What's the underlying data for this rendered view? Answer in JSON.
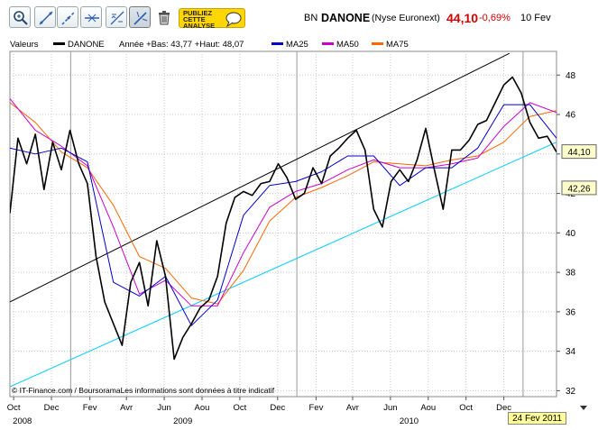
{
  "toolbar": {
    "buttons": [
      "zoom-icon",
      "line-tool-icon",
      "trend-tool-icon",
      "hline-tool-icon",
      "fibonacci-icon",
      "pencil-tool-icon",
      "trash-icon"
    ],
    "ad_lines": [
      "PUBLIEZ",
      "CETTE",
      "ANALYSE"
    ]
  },
  "quote": {
    "code": "BN",
    "name": "DANONE",
    "market": "(Nyse Euronext)",
    "price": "44,10",
    "change": "-0,69%",
    "date": "10 Fev"
  },
  "legend": {
    "title": "Valeurs",
    "series_name": "DANONE",
    "stats": "Année +Bas: 43,77 +Haut: 48,07",
    "ma25": "MA25",
    "ma50": "MA50",
    "ma75": "MA75"
  },
  "colors": {
    "price": "#000000",
    "ma25": "#0000cc",
    "ma50": "#cc00cc",
    "ma75": "#ff6600",
    "support": "#00ccff",
    "resistance": "#000000",
    "quote": "#d40000"
  },
  "copyright": "© IT-Finance.com / BoursoramaLes informations sont données à titre indicatif",
  "last_date_label": "24 Fev 2011",
  "chart_data": {
    "type": "line",
    "title": "DANONE",
    "ylim": [
      31.7,
      49.2
    ],
    "y_ticks": [
      32,
      34,
      36,
      38,
      40,
      42,
      44,
      46,
      48
    ],
    "y_tick_labels": [
      "32",
      "34",
      "36",
      "38",
      "40",
      "42",
      "44",
      "46",
      "48"
    ],
    "x_tick_labels": [
      "Oct",
      "Dec",
      "Fev",
      "Avr",
      "Jun",
      "Aou",
      "Oct",
      "Dec",
      "Fev",
      "Avr",
      "Jun",
      "Aou",
      "Oct",
      "Dec"
    ],
    "x_year_labels": [
      "2008",
      "2009",
      "2010"
    ],
    "x_range": [
      "2008-09-25",
      "2011-02-24"
    ],
    "grid": true,
    "price_labels": [
      {
        "value": 44.1,
        "text": "44,10"
      },
      {
        "value": 42.26,
        "text": "42,26"
      }
    ],
    "trendlines": [
      {
        "name": "resistance",
        "from": [
          "2008-09-25",
          36.5
        ],
        "to": [
          "2010-12-10",
          49.1
        ]
      },
      {
        "name": "support",
        "from": [
          "2008-09-25",
          32.2
        ],
        "to": [
          "2011-02-24",
          44.6
        ]
      }
    ],
    "series": [
      {
        "name": "DANONE",
        "x": [
          "2008-09-25",
          "2008-10-08",
          "2008-10-22",
          "2008-11-05",
          "2008-11-19",
          "2008-12-03",
          "2008-12-17",
          "2008-12-31",
          "2009-01-14",
          "2009-01-28",
          "2009-02-11",
          "2009-02-25",
          "2009-03-11",
          "2009-03-25",
          "2009-04-08",
          "2009-04-22",
          "2009-05-06",
          "2009-05-20",
          "2009-06-03",
          "2009-06-17",
          "2009-07-01",
          "2009-07-15",
          "2009-07-29",
          "2009-08-12",
          "2009-08-26",
          "2009-09-09",
          "2009-09-23",
          "2009-10-07",
          "2009-10-21",
          "2009-11-04",
          "2009-11-18",
          "2009-12-02",
          "2009-12-16",
          "2009-12-30",
          "2010-01-13",
          "2010-01-27",
          "2010-02-10",
          "2010-02-24",
          "2010-03-10",
          "2010-03-24",
          "2010-04-07",
          "2010-04-21",
          "2010-05-05",
          "2010-05-19",
          "2010-06-02",
          "2010-06-16",
          "2010-06-30",
          "2010-07-14",
          "2010-07-28",
          "2010-08-11",
          "2010-08-25",
          "2010-09-08",
          "2010-09-22",
          "2010-10-06",
          "2010-10-20",
          "2010-11-03",
          "2010-11-17",
          "2010-12-01",
          "2010-12-15",
          "2010-12-29",
          "2011-01-12",
          "2011-01-26",
          "2011-02-09",
          "2011-02-24"
        ],
        "values": [
          41.0,
          44.8,
          43.5,
          45.0,
          42.2,
          44.6,
          43.2,
          45.2,
          43.5,
          42.5,
          38.8,
          36.5,
          35.4,
          34.3,
          37.5,
          38.5,
          36.3,
          39.6,
          37.8,
          33.6,
          34.7,
          35.4,
          36.2,
          36.6,
          37.8,
          40.5,
          41.8,
          42.1,
          41.9,
          42.5,
          42.6,
          43.5,
          42.8,
          41.7,
          42.0,
          43.3,
          42.5,
          43.9,
          44.3,
          44.8,
          45.2,
          44.2,
          41.2,
          40.3,
          42.6,
          43.2,
          42.6,
          43.7,
          45.3,
          43.2,
          41.2,
          44.2,
          44.2,
          44.7,
          45.5,
          45.7,
          46.6,
          47.5,
          47.9,
          47.1,
          45.6,
          44.8,
          44.9,
          44.1
        ]
      },
      {
        "name": "MA25",
        "x": [
          "2008-09-25",
          "2008-11-05",
          "2008-12-17",
          "2009-01-28",
          "2009-03-11",
          "2009-04-22",
          "2009-06-03",
          "2009-07-15",
          "2009-08-26",
          "2009-10-07",
          "2009-11-18",
          "2009-12-30",
          "2010-02-10",
          "2010-03-24",
          "2010-05-05",
          "2010-06-16",
          "2010-07-28",
          "2010-09-08",
          "2010-10-20",
          "2010-12-01",
          "2011-01-12",
          "2011-02-24"
        ],
        "values": [
          44.3,
          44.0,
          44.3,
          43.6,
          37.5,
          36.8,
          37.8,
          35.3,
          36.6,
          40.9,
          42.4,
          42.6,
          43.1,
          43.9,
          43.9,
          42.4,
          43.3,
          43.3,
          44.3,
          46.5,
          46.5,
          44.8
        ]
      },
      {
        "name": "MA50",
        "x": [
          "2008-09-25",
          "2008-11-05",
          "2008-12-17",
          "2009-01-28",
          "2009-03-11",
          "2009-04-22",
          "2009-06-03",
          "2009-07-15",
          "2009-08-26",
          "2009-10-07",
          "2009-11-18",
          "2009-12-30",
          "2010-02-10",
          "2010-03-24",
          "2010-05-05",
          "2010-06-16",
          "2010-07-28",
          "2010-09-08",
          "2010-10-20",
          "2010-12-01",
          "2011-01-12",
          "2011-02-24"
        ],
        "values": [
          46.8,
          45.2,
          44.4,
          43.4,
          40.3,
          36.9,
          37.6,
          36.3,
          36.3,
          39.0,
          41.3,
          42.1,
          42.5,
          43.2,
          43.7,
          43.3,
          43.3,
          43.5,
          43.8,
          45.4,
          46.6,
          46.1
        ]
      },
      {
        "name": "MA75",
        "x": [
          "2008-09-25",
          "2008-11-05",
          "2008-12-17",
          "2009-01-28",
          "2009-03-11",
          "2009-04-22",
          "2009-06-03",
          "2009-07-15",
          "2009-08-26",
          "2009-10-07",
          "2009-11-18",
          "2009-12-30",
          "2010-02-10",
          "2010-03-24",
          "2010-05-05",
          "2010-06-16",
          "2010-07-28",
          "2010-09-08",
          "2010-10-20",
          "2010-12-01",
          "2011-01-12",
          "2011-02-24"
        ],
        "values": [
          46.6,
          45.6,
          44.1,
          43.3,
          41.4,
          38.8,
          38.2,
          36.7,
          36.4,
          38.1,
          40.6,
          41.8,
          42.3,
          42.9,
          43.6,
          43.5,
          43.4,
          43.7,
          43.9,
          44.6,
          45.9,
          46.2
        ]
      }
    ]
  }
}
